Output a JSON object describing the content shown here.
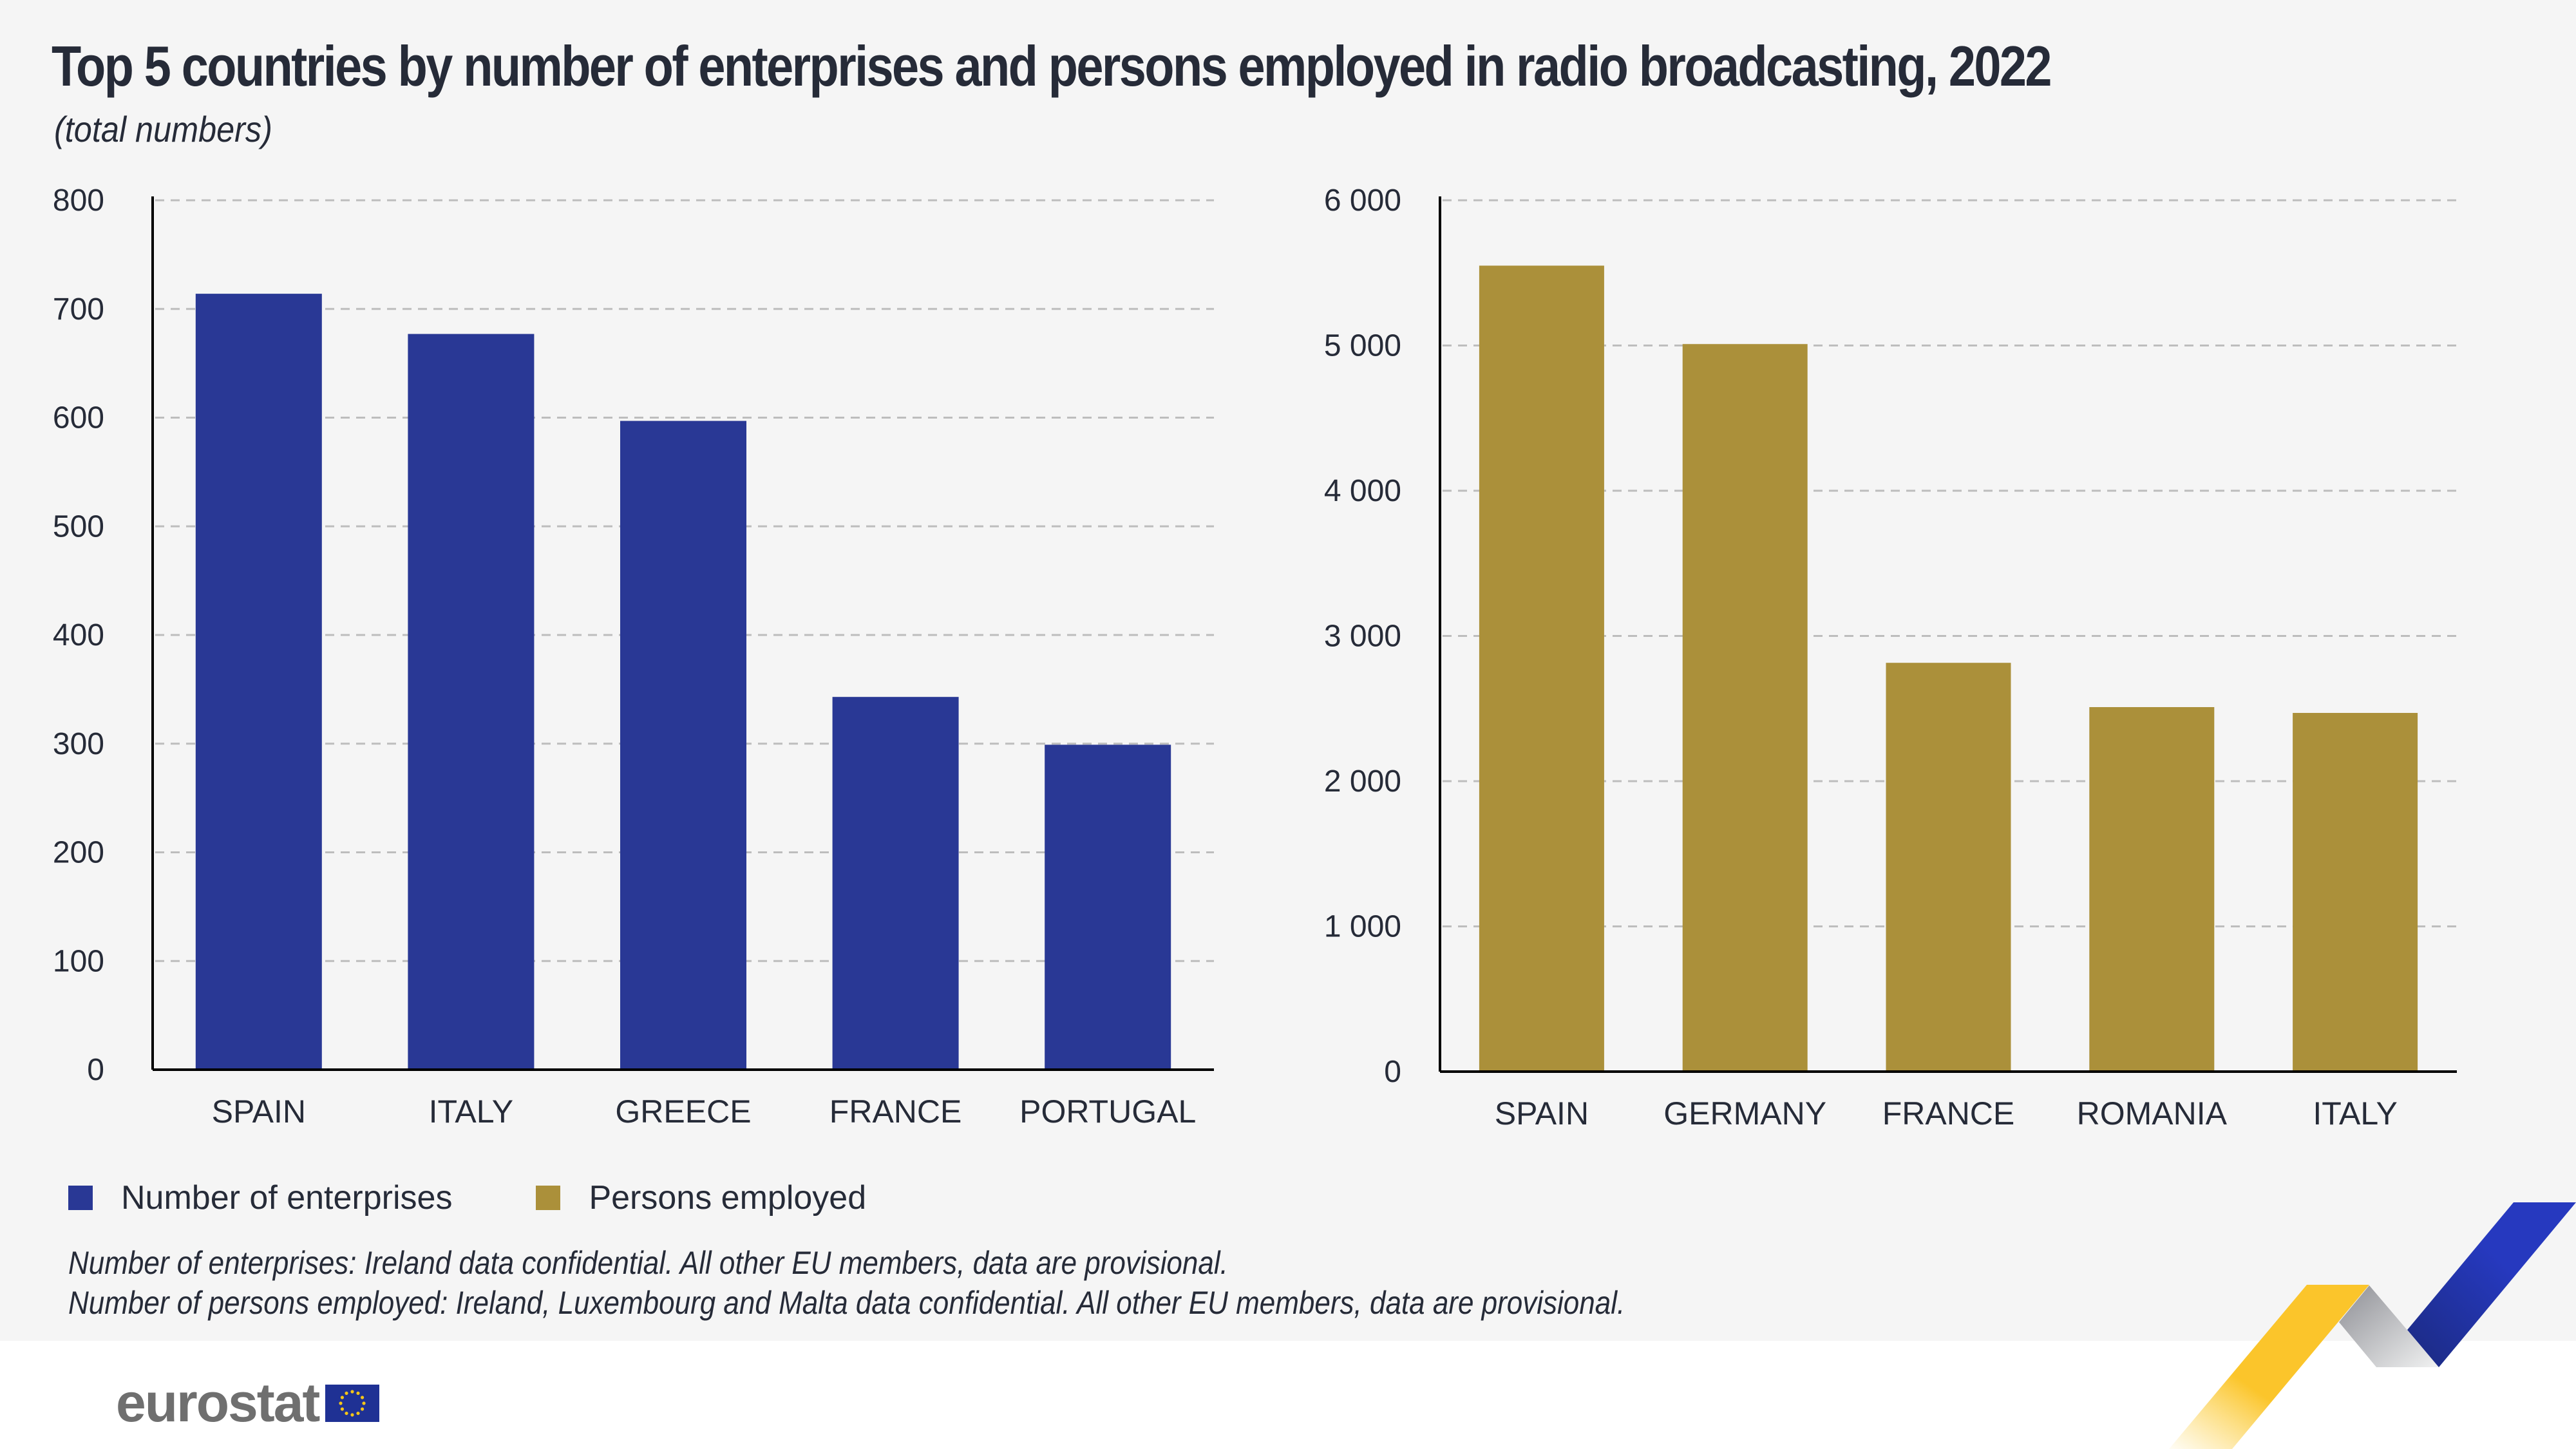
{
  "header": {
    "title": "Top 5 countries by number of enterprises and persons employed in radio broadcasting, 2022",
    "subtitle": "(total numbers)"
  },
  "colors": {
    "enterprises": "#293895",
    "persons": "#ab903a",
    "gridline": "#bdbdbd",
    "axis": "#000000",
    "text": "#262b38"
  },
  "chart_data": [
    {
      "type": "bar",
      "title": "Number of enterprises",
      "categories": [
        "SPAIN",
        "ITALY",
        "GREECE",
        "FRANCE",
        "PORTUGAL"
      ],
      "values": [
        714,
        677,
        597,
        343,
        299
      ],
      "ylim": [
        0,
        800
      ],
      "yticks": [
        0,
        100,
        200,
        300,
        400,
        500,
        600,
        700,
        800
      ],
      "ytick_labels": [
        "0",
        "100",
        "200",
        "300",
        "400",
        "500",
        "600",
        "700",
        "800"
      ],
      "xlabel": "",
      "ylabel": "",
      "grid": true
    },
    {
      "type": "bar",
      "title": "Persons employed",
      "categories": [
        "SPAIN",
        "GERMANY",
        "FRANCE",
        "ROMANIA",
        "ITALY"
      ],
      "values": [
        5550,
        5010,
        2815,
        2510,
        2470
      ],
      "ylim": [
        0,
        6000
      ],
      "yticks": [
        0,
        1000,
        2000,
        3000,
        4000,
        5000,
        6000
      ],
      "ytick_labels": [
        "0",
        "1 000",
        "2 000",
        "3 000",
        "4 000",
        "5 000",
        "6 000"
      ],
      "xlabel": "",
      "ylabel": "",
      "grid": true
    }
  ],
  "legend": {
    "position": "bottom-left",
    "items": [
      {
        "label": "Number of enterprises",
        "color": "#293895"
      },
      {
        "label": "Persons employed",
        "color": "#ab903a"
      }
    ]
  },
  "notes": [
    "Number of enterprises: Ireland data confidential. All other EU members, data are provisional.",
    "Number of persons employed: Ireland, Luxembourg and Malta data confidential. All other EU members, data are provisional."
  ],
  "footer": {
    "logo_text": "eurostat"
  }
}
